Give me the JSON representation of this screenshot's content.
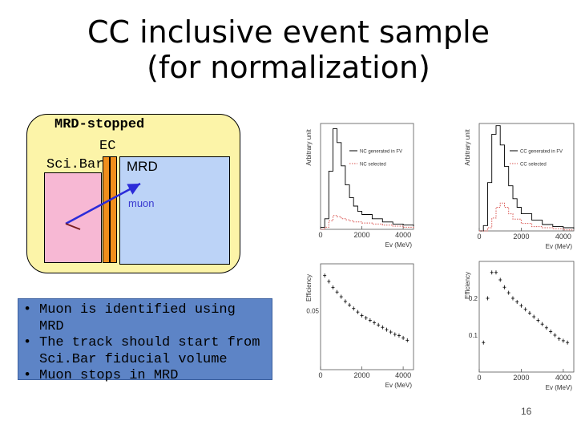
{
  "title_line1": "CC inclusive event sample",
  "title_line2": "(for normalization)",
  "detector": {
    "label_stopped": "MRD-stopped",
    "label_ec": "EC",
    "label_scibar": "Sci.Bar",
    "label_mrd": "MRD",
    "label_muon": "muon",
    "colors": {
      "panel": "#fcf4a8",
      "scibar": "#f7b8d4",
      "ec": "#f08e1d",
      "mrd": "#bcd3f7",
      "muon_track": "#2b2bd9"
    }
  },
  "bullets": [
    "Muon is identified using MRD",
    "The track should start from",
    "Sci.Bar fiducial volume",
    "Muon stops in MRD"
  ],
  "bullet_char": "•",
  "chart_data": [
    {
      "type": "line",
      "ylabel": "Arbitrary unit",
      "xlabel": "Ev (MeV)",
      "xticks": [
        "0",
        "2000",
        "4000"
      ],
      "xlim": [
        0,
        4500
      ],
      "ylim": [
        0,
        1
      ],
      "series": [
        {
          "name": "NC generated in FV",
          "style": "solid",
          "color": "#000000",
          "x": [
            0,
            200,
            400,
            600,
            800,
            1000,
            1200,
            1400,
            1600,
            1800,
            2000,
            2500,
            3000,
            3500,
            4000,
            4500
          ],
          "values": [
            0.02,
            0.1,
            0.55,
            0.95,
            0.82,
            0.6,
            0.42,
            0.3,
            0.22,
            0.17,
            0.14,
            0.1,
            0.07,
            0.05,
            0.04,
            0.03
          ]
        },
        {
          "name": "NC selected",
          "style": "dotted",
          "color": "#d9534f",
          "x": [
            0,
            200,
            400,
            600,
            800,
            1000,
            1200,
            1400,
            1600,
            2000,
            2500,
            3000,
            3500,
            4000,
            4500
          ],
          "values": [
            0,
            0.02,
            0.08,
            0.13,
            0.12,
            0.1,
            0.09,
            0.08,
            0.07,
            0.06,
            0.05,
            0.04,
            0.03,
            0.02,
            0.01
          ]
        }
      ]
    },
    {
      "type": "line",
      "ylabel": "Arbitrary unit",
      "xlabel": "Ev (MeV)",
      "xticks": [
        "0",
        "2000",
        "4000"
      ],
      "xlim": [
        0,
        4500
      ],
      "ylim": [
        0,
        1
      ],
      "series": [
        {
          "name": "CC generated in FV",
          "style": "solid",
          "color": "#000000",
          "x": [
            0,
            200,
            400,
            600,
            800,
            1000,
            1200,
            1400,
            1600,
            1800,
            2000,
            2500,
            3000,
            3500,
            4000,
            4500
          ],
          "values": [
            0,
            0.05,
            0.45,
            0.9,
            0.98,
            0.8,
            0.6,
            0.42,
            0.3,
            0.22,
            0.16,
            0.1,
            0.06,
            0.04,
            0.03,
            0.02
          ]
        },
        {
          "name": "CC selected",
          "style": "dotted",
          "color": "#d9534f",
          "x": [
            0,
            200,
            400,
            600,
            800,
            1000,
            1200,
            1400,
            1600,
            2000,
            2500,
            3000,
            3500,
            4000,
            4500
          ],
          "values": [
            0,
            0,
            0.03,
            0.12,
            0.22,
            0.26,
            0.22,
            0.16,
            0.11,
            0.07,
            0.04,
            0.03,
            0.02,
            0.01,
            0.01
          ]
        }
      ]
    },
    {
      "type": "scatter",
      "ylabel": "Efficiency",
      "xlabel": "Ev (MeV)",
      "xticks": [
        "0",
        "2000",
        "4000"
      ],
      "yticks": [
        "0.05"
      ],
      "xlim": [
        0,
        4500
      ],
      "ylim": [
        0,
        0.09
      ],
      "series": [
        {
          "name": "",
          "color": "#000000",
          "x": [
            200,
            400,
            600,
            800,
            1000,
            1200,
            1400,
            1600,
            1800,
            2000,
            2200,
            2400,
            2600,
            2800,
            3000,
            3200,
            3400,
            3600,
            3800,
            4000,
            4200
          ],
          "values": [
            0.08,
            0.075,
            0.07,
            0.066,
            0.062,
            0.058,
            0.055,
            0.052,
            0.049,
            0.046,
            0.044,
            0.042,
            0.04,
            0.038,
            0.036,
            0.034,
            0.032,
            0.03,
            0.029,
            0.027,
            0.025
          ]
        }
      ]
    },
    {
      "type": "scatter",
      "ylabel": "Efficiency",
      "xlabel": "Ev (MeV)",
      "xticks": [
        "0",
        "2000",
        "4000"
      ],
      "yticks": [
        "0.2",
        "0.1"
      ],
      "xlim": [
        0,
        4500
      ],
      "ylim": [
        0,
        0.3
      ],
      "series": [
        {
          "name": "",
          "color": "#000000",
          "x": [
            200,
            400,
            600,
            800,
            1000,
            1200,
            1400,
            1600,
            1800,
            2000,
            2200,
            2400,
            2600,
            2800,
            3000,
            3200,
            3400,
            3600,
            3800,
            4000,
            4200
          ],
          "values": [
            0.08,
            0.2,
            0.27,
            0.27,
            0.25,
            0.23,
            0.215,
            0.2,
            0.19,
            0.18,
            0.17,
            0.16,
            0.15,
            0.14,
            0.13,
            0.12,
            0.11,
            0.1,
            0.09,
            0.085,
            0.08
          ]
        }
      ]
    }
  ],
  "page_number": "16"
}
